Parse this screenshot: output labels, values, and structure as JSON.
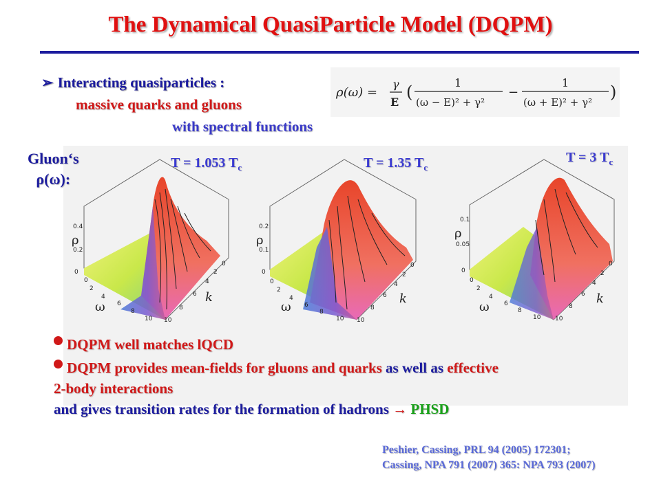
{
  "title": "The Dynamical QuasiParticle Model (DQPM)",
  "intro": {
    "heading": "Interacting quasiparticles :",
    "line1": "massive quarks and gluons",
    "line2": "with spectral functions"
  },
  "formula": {
    "lhs": "ρ(ω) =",
    "gamma": "γ",
    "E": "E",
    "one": "1",
    "den1": "(ω − E)² + γ²",
    "den2": "(ω + E)² + γ²"
  },
  "gluon_label": {
    "line1": "Gluon‘s",
    "line2": "ρ(ω):"
  },
  "temperatures": [
    {
      "text": "T = 1.053 T",
      "sub": "c"
    },
    {
      "text": "T = 1.35 T",
      "sub": "c"
    },
    {
      "text": "T = 3 T",
      "sub": "c"
    }
  ],
  "plots": [
    {
      "rho_ticks": [
        "0.4",
        "0.2",
        "0"
      ],
      "peak": 0.48
    },
    {
      "rho_ticks": [
        "0.2",
        "0.1",
        "0"
      ],
      "peak": 0.24
    },
    {
      "rho_ticks": [
        "0.1",
        "0.05",
        "0"
      ],
      "peak": 0.12
    }
  ],
  "axis": {
    "rho": "ρ",
    "omega": "ω",
    "k": "k",
    "omega_ticks": [
      "0",
      "2",
      "4",
      "6",
      "8",
      "10"
    ],
    "k_ticks": [
      "10",
      "8",
      "6",
      "4",
      "2",
      "0"
    ]
  },
  "points": {
    "p1": "DQPM well matches lQCD",
    "p2_a": "DQPM",
    "p2_b": " provides mean-fields for gluons and quarks ",
    "p2_c": "as well as",
    "p2_d": " effective",
    "p3": "2-body interactions",
    "p4_a": "and gives transition rates for the formation of hadrons ",
    "p4_arrow": "→",
    "p4_b": " PHSD"
  },
  "references": {
    "line1": "Peshier, Cassing, PRL 94 (2005) 172301;",
    "line2": "Cassing,  NPA 791 (2007) 365: NPA 793 (2007)"
  },
  "colors": {
    "title_red": "#e01010",
    "navy": "#1c1c9e",
    "phsd_green": "#18a018"
  }
}
